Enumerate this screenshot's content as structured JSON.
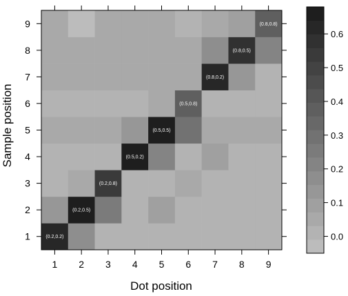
{
  "chart_data": {
    "type": "heatmap",
    "xlabel": "Dot position",
    "ylabel": "Sample position",
    "x": [
      1,
      2,
      3,
      4,
      5,
      6,
      7,
      8,
      9
    ],
    "y": [
      1,
      2,
      3,
      4,
      5,
      6,
      7,
      8,
      9
    ],
    "values": [
      [
        0.62,
        0.18,
        0.02,
        0.03,
        0.03,
        0.02,
        0.02,
        0.02,
        0.02
      ],
      [
        0.15,
        0.64,
        0.25,
        0.03,
        0.08,
        0.02,
        0.02,
        0.02,
        0.02
      ],
      [
        0.03,
        0.07,
        0.52,
        0.02,
        0.02,
        0.05,
        0.03,
        0.03,
        0.03
      ],
      [
        0.03,
        0.03,
        0.03,
        0.66,
        0.22,
        0.02,
        0.08,
        0.03,
        0.03
      ],
      [
        0.07,
        0.07,
        0.07,
        0.12,
        0.64,
        0.3,
        0.07,
        0.07,
        0.07
      ],
      [
        0.03,
        0.03,
        0.03,
        0.03,
        0.06,
        0.36,
        0.03,
        0.03,
        0.03
      ],
      [
        0.04,
        0.04,
        0.04,
        0.04,
        0.04,
        0.04,
        0.62,
        0.14,
        0.02
      ],
      [
        0.04,
        0.04,
        0.04,
        0.04,
        0.04,
        0.04,
        0.16,
        0.58,
        0.2
      ],
      [
        0.04,
        -0.01,
        0.04,
        0.04,
        0.04,
        0.0,
        0.06,
        0.08,
        0.36
      ]
    ],
    "cell_labels": [
      {
        "x": 1,
        "y": 1,
        "text": "(0.2,0.2)"
      },
      {
        "x": 2,
        "y": 2,
        "text": "(0.2,0.5)"
      },
      {
        "x": 3,
        "y": 3,
        "text": "(0.2,0.8)"
      },
      {
        "x": 4,
        "y": 4,
        "text": "(0.5,0.2)"
      },
      {
        "x": 5,
        "y": 5,
        "text": "(0.5,0.5)"
      },
      {
        "x": 6,
        "y": 6,
        "text": "(0.5,0.8)"
      },
      {
        "x": 7,
        "y": 7,
        "text": "(0.8,0.2)"
      },
      {
        "x": 8,
        "y": 8,
        "text": "(0.8,0.5)"
      },
      {
        "x": 9,
        "y": 9,
        "text": "(0.8,0.8)"
      }
    ],
    "colorbar": {
      "range": [
        -0.05,
        0.68
      ],
      "ticks": [
        0.0,
        0.1,
        0.2,
        0.3,
        0.4,
        0.5,
        0.6
      ],
      "tick_labels": [
        "0.0",
        "0.1",
        "0.2",
        "0.3",
        "0.4",
        "0.5",
        "0.6"
      ],
      "color_low": "#bcbcbc",
      "color_high": "#1e1e1e"
    },
    "grid": false,
    "legend": "right colorbar"
  }
}
